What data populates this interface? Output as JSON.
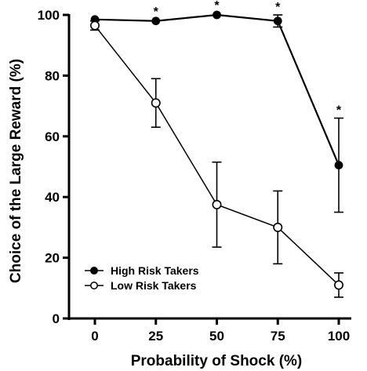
{
  "chart_data": {
    "type": "line",
    "xlabel": "Probability of Shock (%)",
    "ylabel": "Choice of the Large Reward (%)",
    "x": [
      0,
      25,
      50,
      75,
      100
    ],
    "x_tick_labels": [
      "0",
      "25",
      "50",
      "75",
      "100"
    ],
    "y_tick_labels": [
      "0",
      "20",
      "40",
      "60",
      "80",
      "100"
    ],
    "ylim": [
      0,
      100
    ],
    "grid": false,
    "legend_position": "bottom-left",
    "series": [
      {
        "name": "High Risk Takers",
        "marker": "filled-circle",
        "values": [
          98.5,
          98,
          100,
          98,
          50.5
        ],
        "error": [
          0.5,
          0.5,
          0.5,
          2,
          15.5
        ],
        "significance": [
          "",
          "*",
          "*",
          "*",
          "*"
        ]
      },
      {
        "name": "Low Risk Takers",
        "marker": "open-circle",
        "values": [
          96.5,
          71,
          37.5,
          30,
          11
        ],
        "error": [
          1.5,
          8,
          14,
          12,
          4
        ],
        "significance": [
          "",
          "",
          "",
          "",
          ""
        ]
      }
    ],
    "colors": {
      "line": "#000000",
      "open_marker_fill": "#ffffff"
    }
  }
}
